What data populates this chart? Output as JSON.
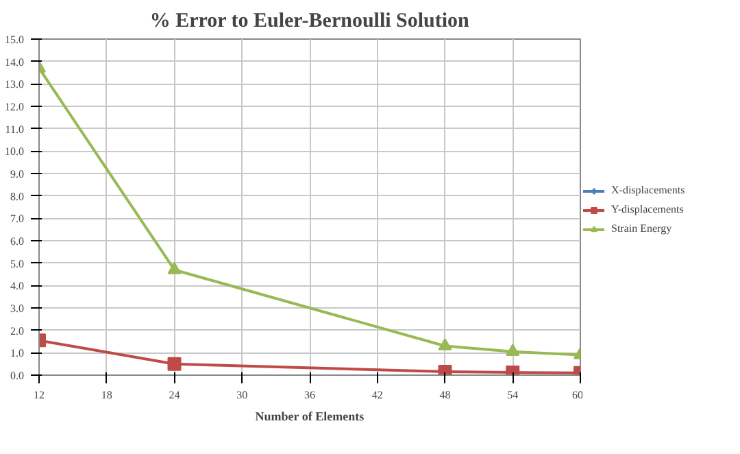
{
  "chart_data": {
    "type": "line",
    "title": "% Error to Euler-Bernoulli Solution",
    "xlabel": "Number of Elements",
    "x": [
      12,
      24,
      48,
      54,
      60
    ],
    "series": [
      {
        "name": "X-displacements",
        "color": "#4a7ebb",
        "marker": "diamond",
        "values": [
          null,
          null,
          null,
          null,
          null
        ]
      },
      {
        "name": "Y-displacements",
        "color": "#be4b48",
        "marker": "square",
        "values": [
          1.55,
          0.5,
          0.15,
          0.12,
          0.1
        ]
      },
      {
        "name": "Strain Energy",
        "color": "#98b954",
        "marker": "triangle",
        "values": [
          13.7,
          4.7,
          1.3,
          1.05,
          0.9
        ]
      }
    ],
    "xlim": [
      12,
      60
    ],
    "xticks": [
      12,
      18,
      24,
      30,
      36,
      42,
      48,
      54,
      60
    ],
    "ylim": [
      0,
      15
    ],
    "yticks": [
      {
        "value": 0,
        "label": "0.0"
      },
      {
        "value": 1,
        "label": "1.0"
      },
      {
        "value": 2,
        "label": "2.0"
      },
      {
        "value": 3,
        "label": "3.0"
      },
      {
        "value": 4,
        "label": "4.0"
      },
      {
        "value": 5,
        "label": "5.0"
      },
      {
        "value": 6,
        "label": "6.0"
      },
      {
        "value": 7,
        "label": "7.0"
      },
      {
        "value": 8,
        "label": "8.0"
      },
      {
        "value": 9,
        "label": "9.0"
      },
      {
        "value": 10,
        "label": "10.0"
      },
      {
        "value": 11,
        "label": "11.0"
      },
      {
        "value": 12,
        "label": "12.0"
      },
      {
        "value": 13,
        "label": "13.0"
      },
      {
        "value": 14,
        "label": "14.0"
      },
      {
        "value": 15,
        "label": "15.0"
      }
    ],
    "grid": true,
    "legend": "right",
    "line_style": "solid"
  }
}
